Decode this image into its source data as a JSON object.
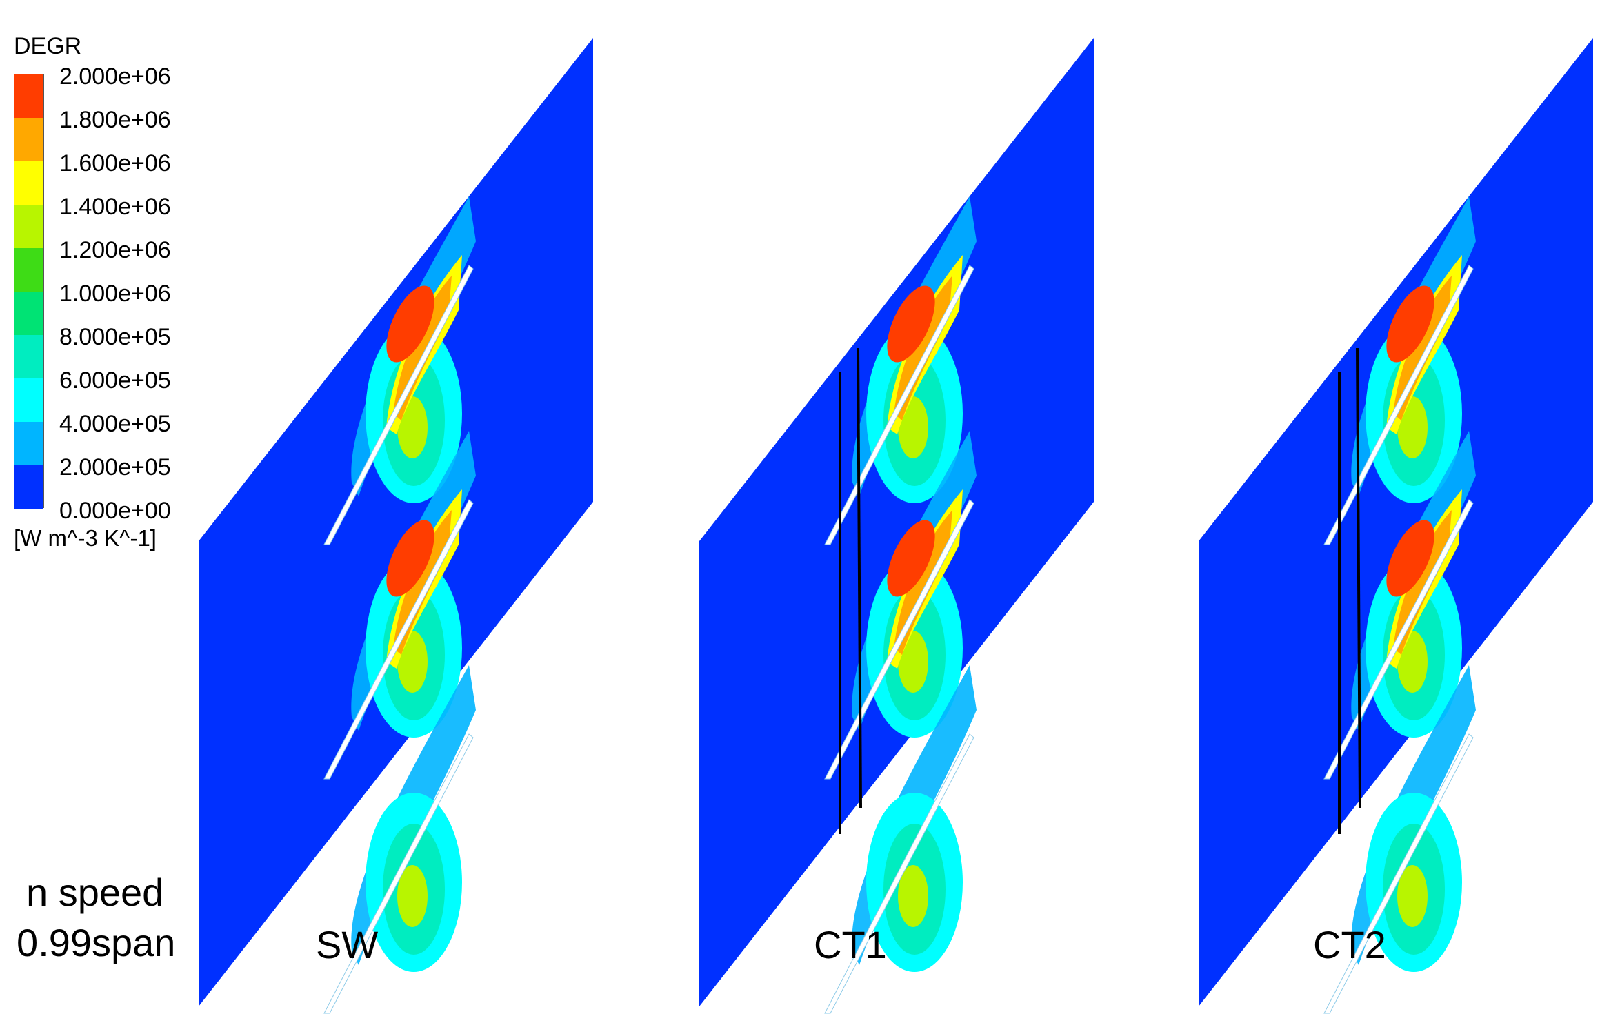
{
  "legend": {
    "variable": "DEGR",
    "units": "[W m^-3 K^-1]",
    "ticks": [
      "2.000e+06",
      "1.800e+06",
      "1.600e+06",
      "1.400e+06",
      "1.200e+06",
      "1.000e+06",
      "8.000e+05",
      "6.000e+05",
      "4.000e+05",
      "2.000e+05",
      "0.000e+00"
    ],
    "colors": [
      "#ff3d00",
      "#ffa800",
      "#ffff00",
      "#b8f500",
      "#3edc16",
      "#00e374",
      "#00edc0",
      "#00ffff",
      "#00b5ff",
      "#0069ff",
      "#0030ff"
    ]
  },
  "condition": {
    "line1": "n speed",
    "line2": "0.99span"
  },
  "panels": [
    {
      "label": "SW",
      "treatment_lines": 0
    },
    {
      "label": "CT1",
      "treatment_lines": 2
    },
    {
      "label": "CT2",
      "treatment_lines": 2
    }
  ]
}
